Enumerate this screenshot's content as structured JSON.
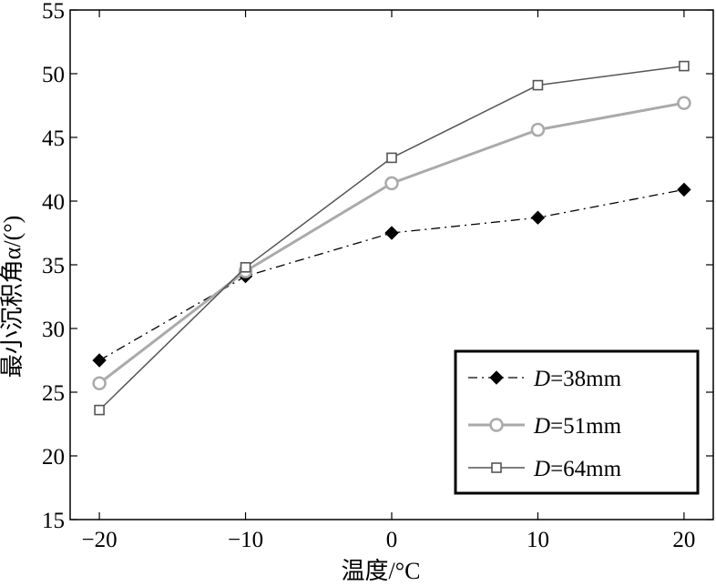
{
  "chart_data": {
    "type": "line",
    "title": "",
    "xlabel": "温度/°C",
    "ylabel": "最小沉积角α/(°)",
    "x": [
      -20,
      -10,
      0,
      10,
      20
    ],
    "xlim": [
      -22,
      22
    ],
    "ylim": [
      15,
      55
    ],
    "xticks": [
      -20,
      -10,
      0,
      10,
      20
    ],
    "xtick_labels": [
      "−20",
      "−10",
      "0",
      "10",
      "20"
    ],
    "yticks": [
      15,
      20,
      25,
      30,
      35,
      40,
      45,
      50,
      55
    ],
    "ytick_labels": [
      "15",
      "20",
      "25",
      "30",
      "35",
      "40",
      "45",
      "50",
      "55"
    ],
    "grid": false,
    "legend_position": "bottom-right",
    "series": [
      {
        "name": "D=38mm",
        "name_parts": [
          "D",
          "=38mm"
        ],
        "values": [
          27.5,
          34.1,
          37.5,
          38.7,
          40.9
        ],
        "color": "#000000",
        "marker": "diamond",
        "linestyle": "dash-dot"
      },
      {
        "name": "D=51mm",
        "name_parts": [
          "D",
          "=51mm"
        ],
        "values": [
          25.7,
          34.5,
          41.4,
          45.6,
          47.7
        ],
        "color": "#aaaaaa",
        "marker": "circle",
        "linestyle": "solid"
      },
      {
        "name": "D=64mm",
        "name_parts": [
          "D",
          "=64mm"
        ],
        "values": [
          23.6,
          34.8,
          43.4,
          49.1,
          50.6
        ],
        "color": "#555555",
        "marker": "square",
        "linestyle": "solid"
      }
    ]
  }
}
